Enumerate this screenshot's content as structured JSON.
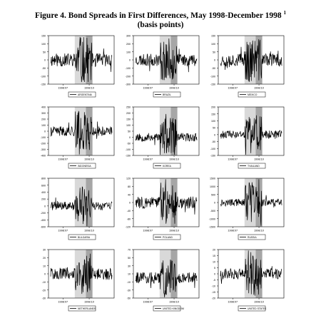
{
  "figure": {
    "title": "Figure 4. Bond Spreads in First Differences, May 1998-December 1998",
    "footnote_mark": "1",
    "subtitle": "(basis points)"
  },
  "chart_data": [
    {
      "type": "line",
      "legend": "ARGENTINA",
      "yticks": [
        "150",
        "100",
        "50",
        "0",
        "-50",
        "-100",
        "-150"
      ],
      "xticks": [
        "1998:07",
        "1998:10"
      ],
      "ylim": [
        -150,
        150
      ],
      "seed": 11,
      "amp": 0.55,
      "spike": 0.95
    },
    {
      "type": "line",
      "legend": "BRAZIL",
      "yticks": [
        "300",
        "200",
        "100",
        "0",
        "-100",
        "-200",
        "-300"
      ],
      "xticks": [
        "1998:07",
        "1998:10"
      ],
      "ylim": [
        -300,
        300
      ],
      "seed": 23,
      "amp": 0.5,
      "spike": 0.9
    },
    {
      "type": "line",
      "legend": "MEXICO",
      "yticks": [
        "150",
        "100",
        "50",
        "0",
        "-50",
        "-100",
        "-150"
      ],
      "xticks": [
        "1998:07",
        "1998:10"
      ],
      "ylim": [
        -150,
        150
      ],
      "seed": 37,
      "amp": 0.55,
      "spike": 0.9
    },
    {
      "type": "line",
      "legend": "INDONESIA",
      "yticks": [
        "400",
        "300",
        "200",
        "100",
        "0",
        "-100",
        "-200",
        "-300",
        "-400"
      ],
      "xticks": [
        "1998:07",
        "1998:10"
      ],
      "ylim": [
        -400,
        400
      ],
      "seed": 41,
      "amp": 0.4,
      "spike": 0.85
    },
    {
      "type": "line",
      "legend": "KOREA",
      "yticks": [
        "250",
        "200",
        "150",
        "100",
        "50",
        "0",
        "-50",
        "-100",
        "-150"
      ],
      "xticks": [
        "1998:07",
        "1998:10"
      ],
      "ylim": [
        -150,
        250
      ],
      "seed": 53,
      "amp": 0.35,
      "spike": 0.8
    },
    {
      "type": "line",
      "legend": "THAILAND",
      "yticks": [
        "200",
        "150",
        "100",
        "50",
        "0",
        "-50",
        "-100",
        "-150"
      ],
      "xticks": [
        "1998:07",
        "1998:10"
      ],
      "ylim": [
        -150,
        200
      ],
      "seed": 61,
      "amp": 0.35,
      "spike": 0.8
    },
    {
      "type": "line",
      "legend": "BULGARIA",
      "yticks": [
        "800",
        "600",
        "400",
        "200",
        "0",
        "-200",
        "-400",
        "-600"
      ],
      "xticks": [
        "1998:07",
        "1998:10"
      ],
      "ylim": [
        -600,
        800
      ],
      "seed": 71,
      "amp": 0.35,
      "spike": 0.85
    },
    {
      "type": "line",
      "legend": "POLAND",
      "yticks": [
        "120",
        "80",
        "40",
        "0",
        "-40",
        "-80",
        "-120"
      ],
      "xticks": [
        "1998:07",
        "1998:10"
      ],
      "ylim": [
        -120,
        120
      ],
      "seed": 83,
      "amp": 0.5,
      "spike": 0.9
    },
    {
      "type": "line",
      "legend": "RUSSIA",
      "yticks": [
        "1500",
        "1000",
        "500",
        "0",
        "-500",
        "-1000",
        "-1500"
      ],
      "xticks": [
        "1998:07",
        "1998:10"
      ],
      "ylim": [
        -1500,
        1500
      ],
      "seed": 97,
      "amp": 0.3,
      "spike": 0.85
    },
    {
      "type": "line",
      "legend": "NETHERLANDS",
      "yticks": [
        "30",
        "20",
        "10",
        "0",
        "-10",
        "-20",
        "-30"
      ],
      "xticks": [
        "1998:07",
        "1998:10"
      ],
      "ylim": [
        -30,
        30
      ],
      "seed": 101,
      "amp": 0.5,
      "spike": 0.85
    },
    {
      "type": "line",
      "legend": "UNITED KINGDOM",
      "yticks": [
        "70",
        "50",
        "30",
        "10",
        "-10",
        "-30",
        "-50"
      ],
      "xticks": [
        "1998:07",
        "1998:10"
      ],
      "ylim": [
        -50,
        70
      ],
      "seed": 113,
      "amp": 0.45,
      "spike": 0.85
    },
    {
      "type": "line",
      "legend": "UNITED STATES",
      "yticks": [
        "20",
        "15",
        "10",
        "5",
        "0",
        "-5",
        "-10",
        "-15",
        "-20"
      ],
      "xticks": [
        "1998:07",
        "1998:10"
      ],
      "ylim": [
        -20,
        20
      ],
      "seed": 127,
      "amp": 0.45,
      "spike": 0.9
    }
  ],
  "shading": {
    "light_color": "#d9d9d9",
    "dark_color": "#a6a6a6"
  }
}
